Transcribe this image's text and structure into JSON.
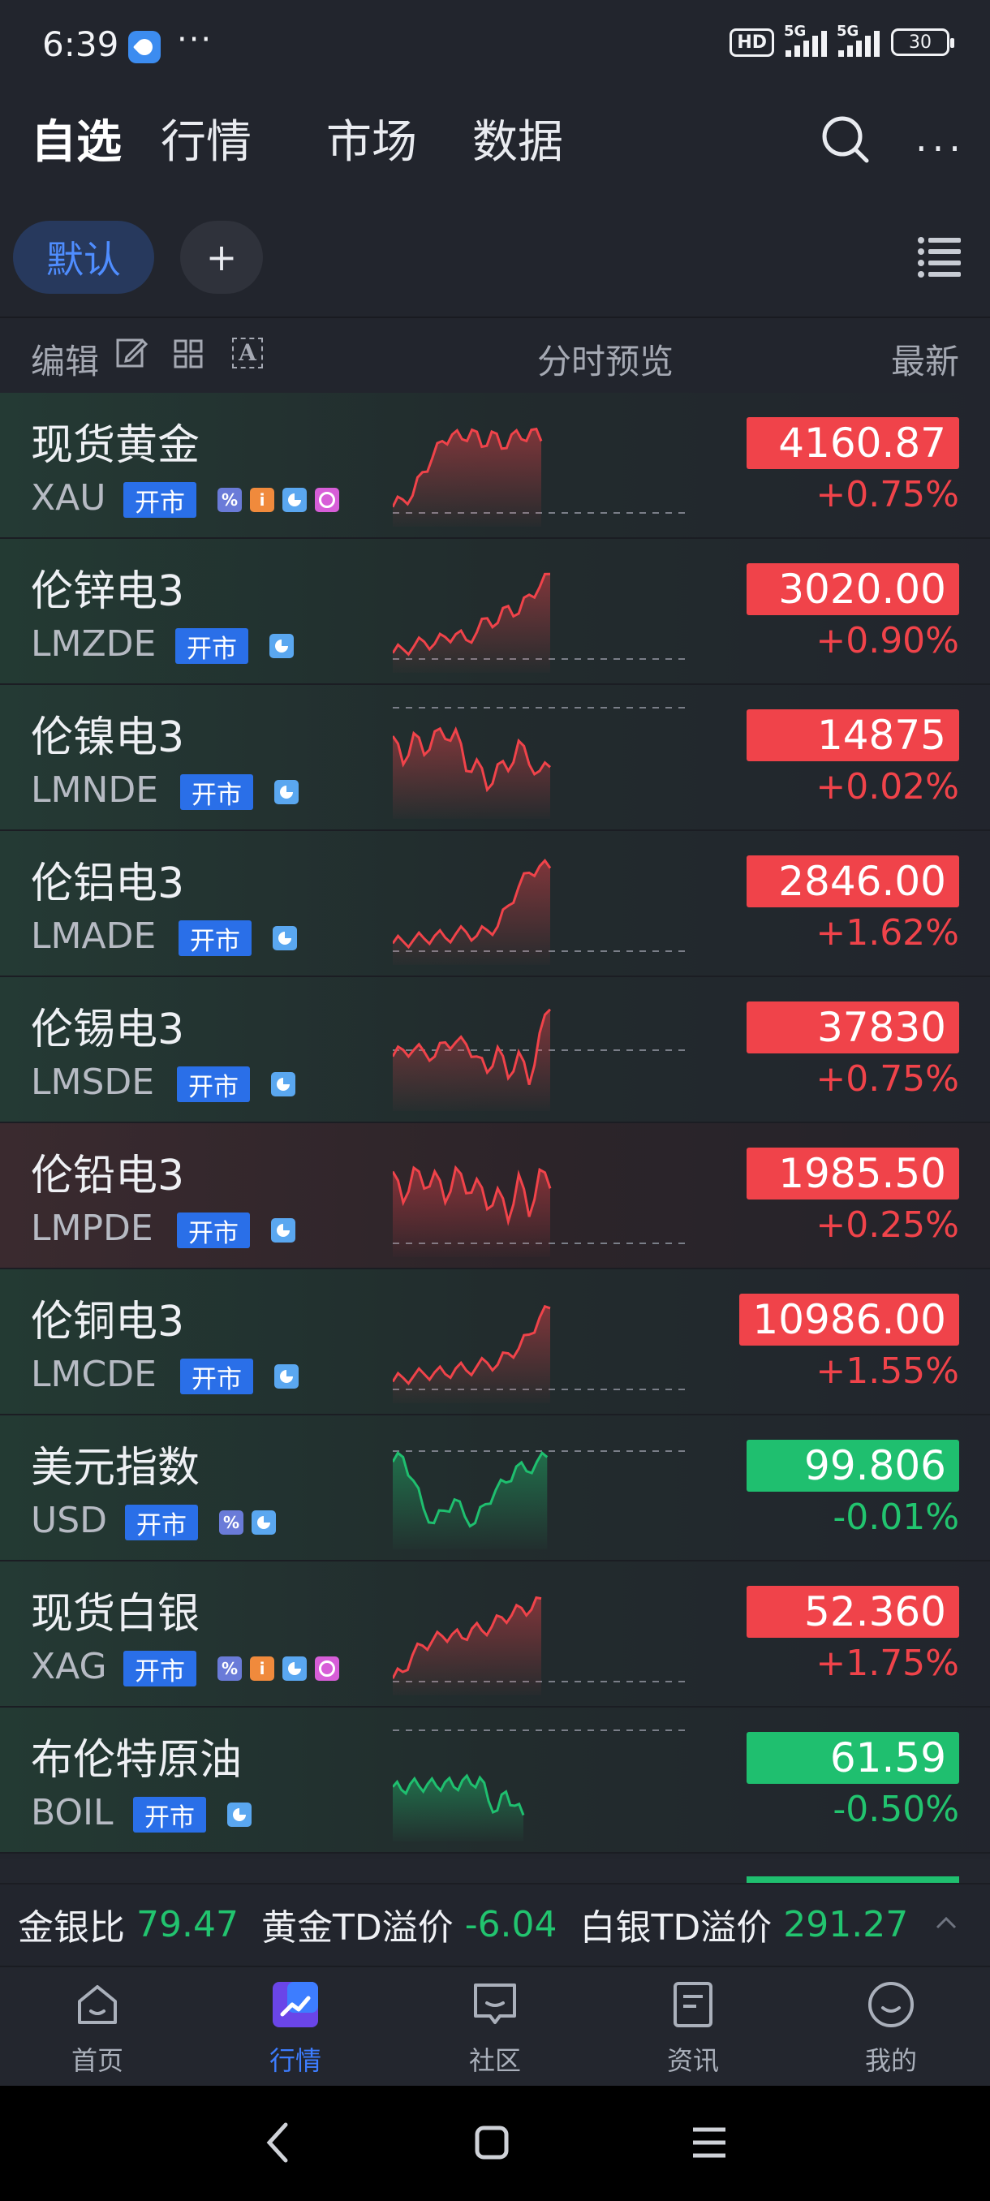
{
  "status_bar": {
    "time": "6:39",
    "dots": "···",
    "hd": "HD",
    "network_1": "5G",
    "network_2": "5G",
    "battery": "30"
  },
  "top_nav": {
    "tabs": [
      {
        "label": "自选",
        "active": true
      },
      {
        "label": "行情",
        "active": false
      },
      {
        "label": "市场",
        "active": false
      },
      {
        "label": "数据",
        "active": false
      }
    ]
  },
  "groups": {
    "default_label": "默认",
    "add_label": "+"
  },
  "columns": {
    "edit": "编辑",
    "preview": "分时预览",
    "latest": "最新"
  },
  "watchlist": [
    {
      "name": "现货黄金",
      "code": "XAU",
      "status": "开市",
      "price": "4160.87",
      "change": "+0.75%",
      "direction": "up",
      "tags": [
        "pct",
        "info",
        "pie",
        "clock"
      ]
    },
    {
      "name": "伦锌电3",
      "code": "LMZDE",
      "status": "开市",
      "price": "3020.00",
      "change": "+0.90%",
      "direction": "up",
      "tags": [
        "pie"
      ]
    },
    {
      "name": "伦镍电3",
      "code": "LMNDE",
      "status": "开市",
      "price": "14875",
      "change": "+0.02%",
      "direction": "up",
      "tags": [
        "pie"
      ]
    },
    {
      "name": "伦铝电3",
      "code": "LMADE",
      "status": "开市",
      "price": "2846.00",
      "change": "+1.62%",
      "direction": "up",
      "tags": [
        "pie"
      ]
    },
    {
      "name": "伦锡电3",
      "code": "LMSDE",
      "status": "开市",
      "price": "37830",
      "change": "+0.75%",
      "direction": "up",
      "tags": [
        "pie"
      ]
    },
    {
      "name": "伦铅电3",
      "code": "LMPDE",
      "status": "开市",
      "price": "1985.50",
      "change": "+0.25%",
      "direction": "up",
      "tags": [
        "pie"
      ]
    },
    {
      "name": "伦铜电3",
      "code": "LMCDE",
      "status": "开市",
      "price": "10986.00",
      "change": "+1.55%",
      "direction": "up",
      "tags": [
        "pie"
      ]
    },
    {
      "name": "美元指数",
      "code": "USD",
      "status": "开市",
      "price": "99.806",
      "change": "-0.01%",
      "direction": "down",
      "tags": [
        "pct",
        "pie"
      ]
    },
    {
      "name": "现货白银",
      "code": "XAG",
      "status": "开市",
      "price": "52.360",
      "change": "+1.75%",
      "direction": "up",
      "tags": [
        "pct",
        "info",
        "pie",
        "clock"
      ]
    },
    {
      "name": "布伦特原油",
      "code": "BOIL",
      "status": "开市",
      "price": "61.59",
      "change": "-0.50%",
      "direction": "down",
      "tags": [
        "pie"
      ]
    }
  ],
  "ticker": {
    "gold_silver_ratio_label": "金银比 ",
    "gold_silver_ratio_value": "79.47",
    "gold_td_label": "  黄金TD溢价 ",
    "gold_td_value": "-6.04",
    "silver_td_label": "  白银TD溢价 ",
    "silver_td_value": "291.27"
  },
  "bottom_nav": {
    "items": [
      {
        "label": "首页",
        "active": false
      },
      {
        "label": "行情",
        "active": true
      },
      {
        "label": "社区",
        "active": false
      },
      {
        "label": "资讯",
        "active": false
      },
      {
        "label": "我的",
        "active": false
      }
    ]
  },
  "colors": {
    "up": "#f0434a",
    "down": "#1fbf6f",
    "accent": "#3d7dff",
    "background": "#22252d"
  }
}
